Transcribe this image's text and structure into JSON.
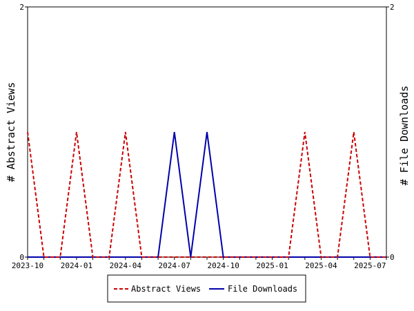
{
  "chart_data": {
    "type": "line",
    "title": "",
    "x_tick_labels": [
      "2023-10",
      "2024-01",
      "2024-04",
      "2024-07",
      "2024-10",
      "2025-01",
      "2025-04",
      "2025-07"
    ],
    "x_dates": [
      "2023-10",
      "2023-11",
      "2023-12",
      "2024-01",
      "2024-02",
      "2024-03",
      "2024-04",
      "2024-05",
      "2024-06",
      "2024-07",
      "2024-08",
      "2024-09",
      "2024-10",
      "2024-11",
      "2024-12",
      "2025-01",
      "2025-02",
      "2025-03",
      "2025-04",
      "2025-05",
      "2025-06",
      "2025-07",
      "2025-08"
    ],
    "ylabel_left": "# Abstract Views",
    "ylabel_right": "# File Downloads",
    "ylim_left": [
      0,
      2
    ],
    "ylim_right": [
      0,
      2
    ],
    "y_ticks_left": [
      "0",
      "2"
    ],
    "y_ticks_right": [
      "0",
      "2"
    ],
    "legend_position": "bottom",
    "series": [
      {
        "name": "Abstract Views",
        "axis": "left",
        "color": "#cc0000",
        "dash": "dashed",
        "values": [
          1,
          0,
          0,
          1,
          0,
          0,
          1,
          0,
          0,
          0,
          0,
          0,
          0,
          0,
          0,
          0,
          0,
          1,
          0,
          0,
          1,
          0,
          0
        ]
      },
      {
        "name": "File Downloads",
        "axis": "right",
        "color": "#0000aa",
        "dash": "solid",
        "values": [
          0,
          0,
          0,
          0,
          0,
          0,
          0,
          0,
          0,
          1,
          0,
          1,
          0,
          0,
          0,
          0,
          0,
          0,
          0,
          0,
          0,
          0,
          0
        ]
      }
    ]
  }
}
